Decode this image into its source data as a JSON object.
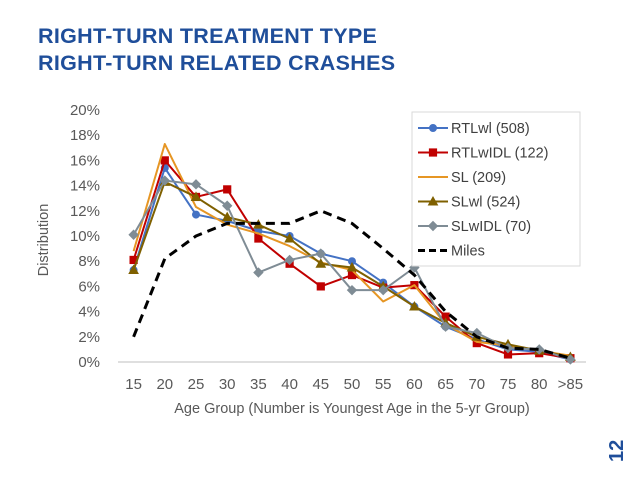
{
  "slide": {
    "title_line1": "RIGHT-TURN TREATMENT TYPE",
    "title_line2": "RIGHT-TURN RELATED CRASHES",
    "page_number": "12"
  },
  "chart_data": {
    "type": "line",
    "xlabel": "Age Group (Number is Youngest Age in the 5-yr Group)",
    "ylabel": "Distribution",
    "categories": [
      "15",
      "20",
      "25",
      "30",
      "35",
      "40",
      "45",
      "50",
      "55",
      "60",
      "65",
      "70",
      "75",
      "80",
      ">85"
    ],
    "y_ticks": [
      "0%",
      "2%",
      "4%",
      "6%",
      "8%",
      "10%",
      "12%",
      "14%",
      "16%",
      "18%",
      "20%"
    ],
    "ylim": [
      0,
      20
    ],
    "y_unit": "%",
    "grid": false,
    "legend_position": "top-right",
    "series": [
      {
        "name": "RTLwl (508)",
        "color": "#4472c4",
        "marker": "circle",
        "dash": "none",
        "values": [
          7.3,
          15.4,
          11.7,
          11.2,
          10.4,
          10.0,
          8.6,
          8.0,
          6.3,
          4.4,
          2.8,
          1.8,
          1.0,
          0.8,
          0.2
        ]
      },
      {
        "name": "RTLwIDL (122)",
        "color": "#c00000",
        "marker": "square",
        "dash": "none",
        "values": [
          8.1,
          16.0,
          13.1,
          13.7,
          9.8,
          7.8,
          6.0,
          6.9,
          5.9,
          6.1,
          3.6,
          1.5,
          0.6,
          0.7,
          0.3
        ]
      },
      {
        "name": "SL (209)",
        "color": "#e69624",
        "marker": "none",
        "dash": "none",
        "values": [
          8.8,
          17.3,
          12.3,
          10.9,
          10.2,
          9.2,
          7.9,
          7.3,
          4.8,
          6.1,
          3.0,
          1.6,
          1.3,
          0.9,
          0.5
        ]
      },
      {
        "name": "SLwl (524)",
        "color": "#7f6000",
        "marker": "triangle",
        "dash": "none",
        "values": [
          7.3,
          14.3,
          13.1,
          11.5,
          10.9,
          9.8,
          7.8,
          7.5,
          6.0,
          4.4,
          3.1,
          2.0,
          1.4,
          0.9,
          0.4
        ]
      },
      {
        "name": "SLwIDL (70)",
        "color": "#7f8c95",
        "marker": "diamond",
        "dash": "none",
        "values": [
          10.1,
          14.4,
          14.1,
          12.4,
          7.1,
          8.1,
          8.6,
          5.7,
          5.7,
          7.5,
          2.8,
          2.3,
          1.1,
          1.0,
          0.2
        ]
      },
      {
        "name": "Miles",
        "color": "#000000",
        "marker": "none",
        "dash": "dashed",
        "values": [
          2.0,
          8.2,
          10.0,
          11.0,
          11.0,
          11.0,
          12.0,
          11.0,
          9.0,
          6.9,
          4.0,
          2.0,
          1.1,
          1.0,
          0.3
        ]
      }
    ]
  }
}
